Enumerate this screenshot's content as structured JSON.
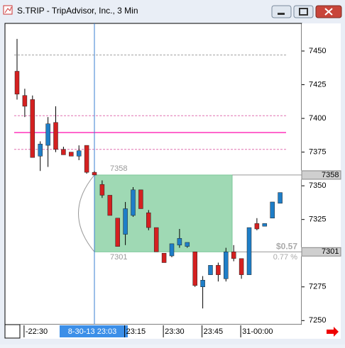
{
  "window": {
    "title": "S.TRIP - TripAdvisor, Inc., 3 Min"
  },
  "chart_data": {
    "type": "candlestick",
    "categories": [
      null,
      "-22:30",
      null,
      null,
      null,
      null,
      null,
      null,
      null,
      null,
      "8-30-13 23:03",
      null,
      null,
      null,
      "23:15",
      null,
      null,
      null,
      null,
      "23:30",
      null,
      null,
      null,
      null,
      "23:45",
      null,
      null,
      null,
      null,
      "31-00:00",
      null,
      null,
      null,
      null,
      null
    ],
    "open": [
      7435,
      7417,
      7414,
      7372,
      7380,
      7397,
      7377,
      7375,
      7372,
      7380,
      7360,
      7351,
      7343,
      7326,
      7314,
      7328,
      7347,
      7330,
      7319,
      7300,
      7298,
      7306,
      7305,
      7301,
      7275,
      7284,
      7291,
      7281,
      7301,
      7296,
      7284,
      7322,
      7320,
      7326,
      7337
    ],
    "high": [
      7459,
      7422,
      7417,
      7383,
      7401,
      7409,
      7379,
      7375,
      7380,
      7380,
      7361,
      7354,
      7343,
      7326,
      7338,
      7349,
      7347,
      7332,
      7319,
      7300,
      7307,
      7318,
      7308,
      7301,
      7283,
      7291,
      7293,
      7304,
      7306,
      7296,
      7319,
      7326,
      7322,
      7338,
      7345
    ],
    "low": [
      7414,
      7401,
      7371,
      7361,
      7364,
      7375,
      7373,
      7372,
      7369,
      7359,
      7358,
      7341,
      7328,
      7305,
      7306,
      7327,
      7333,
      7317,
      7301,
      7293,
      7297,
      7304,
      7304,
      7275,
      7259,
      7284,
      7279,
      7279,
      7294,
      7281,
      7284,
      7317,
      7320,
      7326,
      7337
    ],
    "close": [
      7418,
      7409,
      7371,
      7381,
      7396,
      7377,
      7373,
      7372,
      7376,
      7360,
      7358,
      7343,
      7328,
      7305,
      7333,
      7347,
      7333,
      7319,
      7301,
      7293,
      7307,
      7311,
      7308,
      7276,
      7280,
      7291,
      7284,
      7301,
      7296,
      7284,
      7319,
      7318,
      7322,
      7338,
      7345
    ],
    "up_color": "#1e7ec8",
    "down_color": "#d42020",
    "ylim": [
      7247,
      7470.5
    ],
    "yticks": [
      7250,
      7275,
      7325,
      7350,
      7375,
      7400,
      7425,
      7450
    ],
    "highlight": "8-30-13 23:03",
    "reference_lines": [
      {
        "value": 7447,
        "color": "#a0a0a0",
        "dashed": true
      },
      {
        "value": 7402,
        "color": "#e070b0",
        "dashed": true
      },
      {
        "value": 7389.5,
        "color": "#ff66cc",
        "dashed": false
      },
      {
        "value": 7377,
        "color": "#e070b0",
        "dashed": true
      }
    ],
    "measure": {
      "from": 7358,
      "to": 7301,
      "change": "$0.57",
      "percent": "0.77 %",
      "color": "#9fd9b4"
    }
  }
}
